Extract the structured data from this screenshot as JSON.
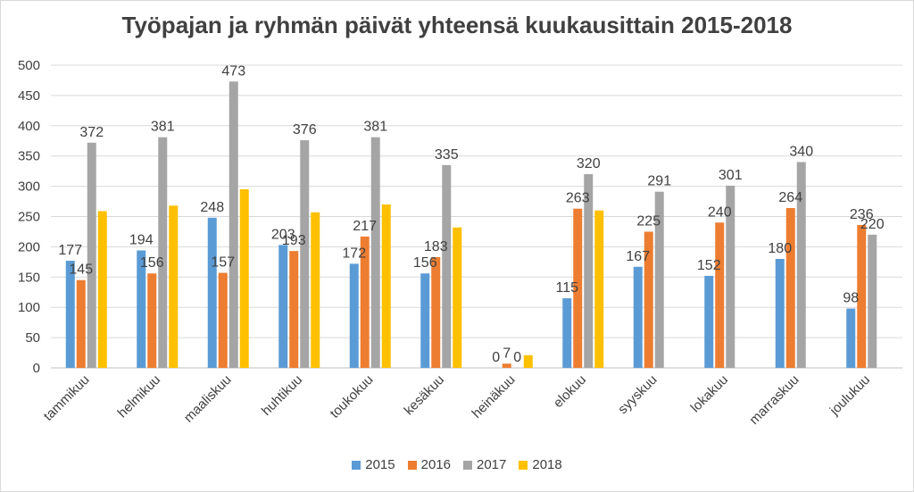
{
  "chart_data": {
    "type": "bar",
    "title": "Työpajan ja ryhmän päivät yhteensä kuukausittain 2015-2018",
    "xlabel": "",
    "ylabel": "",
    "ylim": [
      0,
      500
    ],
    "yticks": [
      "0",
      "50",
      "100",
      "150",
      "200",
      "250",
      "300",
      "350",
      "400",
      "450",
      "500"
    ],
    "grid": true,
    "legend_position": "bottom",
    "categories": [
      "tammikuu",
      "helmikuu",
      "maaliskuu",
      "huhtikuu",
      "toukokuu",
      "kesäkuu",
      "heinäkuu",
      "elokuu",
      "syyskuu",
      "lokakuu",
      "marraskuu",
      "joulukuu"
    ],
    "series": [
      {
        "name": "2015",
        "color": "#5b9bd5",
        "values": [
          177,
          194,
          248,
          203,
          172,
          156,
          0,
          115,
          167,
          152,
          180,
          98
        ],
        "labels": [
          "177",
          "194",
          "248",
          "203",
          "172",
          "156",
          "0",
          "115",
          "167",
          "152",
          "180",
          "98"
        ]
      },
      {
        "name": "2016",
        "color": "#ed7d31",
        "values": [
          145,
          156,
          157,
          193,
          217,
          183,
          7,
          263,
          225,
          240,
          264,
          236
        ],
        "labels": [
          "145",
          "156",
          "157",
          "193",
          "217",
          "183",
          "7",
          "263",
          "225",
          "240",
          "264",
          "236"
        ]
      },
      {
        "name": "2017",
        "color": "#a5a5a5",
        "values": [
          372,
          381,
          473,
          376,
          381,
          335,
          0,
          320,
          291,
          301,
          340,
          220
        ],
        "labels": [
          "372",
          "381",
          "473",
          "376",
          "381",
          "335",
          "0",
          "320",
          "291",
          "301",
          "340",
          "220"
        ]
      },
      {
        "name": "2018",
        "color": "#ffc000",
        "values": [
          259,
          268,
          295,
          257,
          270,
          232,
          21,
          260,
          null,
          null,
          null,
          null
        ],
        "labels": [
          null,
          null,
          null,
          null,
          null,
          null,
          null,
          null,
          null,
          null,
          null,
          null
        ]
      }
    ]
  }
}
